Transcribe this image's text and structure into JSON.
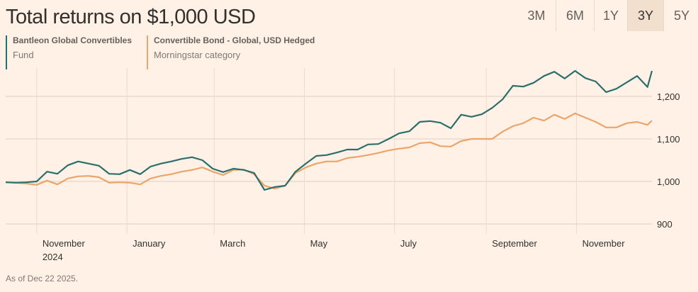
{
  "title": "Total returns on $1,000 USD",
  "ranges": [
    {
      "label": "3M",
      "selected": false
    },
    {
      "label": "6M",
      "selected": false
    },
    {
      "label": "1Y",
      "selected": false
    },
    {
      "label": "3Y",
      "selected": true
    },
    {
      "label": "5Y",
      "selected": false
    }
  ],
  "legend": [
    {
      "name": "Bantleon Global Convertibles",
      "sub": "Fund",
      "color": "#2b6e6b"
    },
    {
      "name": "Convertible Bond - Global, USD Hedged",
      "sub": "Morningstar category",
      "color": "#eba56a"
    }
  ],
  "footnote": "As of Dec 22 2025.",
  "chart_data": {
    "type": "line",
    "x_range": [
      "2024-10-11",
      "2025-12-22"
    ],
    "ylim": [
      880,
      1270
    ],
    "yticks": [
      {
        "value": 900,
        "label": "900"
      },
      {
        "value": 1000,
        "label": "1,000"
      },
      {
        "value": 1100,
        "label": "1,100"
      },
      {
        "value": 1200,
        "label": "1,200"
      }
    ],
    "xticks": [
      {
        "date": "2024-11-01",
        "label": "November",
        "sub": "2024"
      },
      {
        "date": "2025-01-01",
        "label": "January"
      },
      {
        "date": "2025-03-01",
        "label": "March"
      },
      {
        "date": "2025-05-01",
        "label": "May"
      },
      {
        "date": "2025-07-01",
        "label": "July"
      },
      {
        "date": "2025-09-01",
        "label": "September"
      },
      {
        "date": "2025-11-01",
        "label": "November"
      }
    ],
    "grid": true,
    "x": [
      "2024-10-11",
      "2024-10-18",
      "2024-10-25",
      "2024-11-01",
      "2024-11-08",
      "2024-11-15",
      "2024-11-22",
      "2024-11-29",
      "2024-12-06",
      "2024-12-13",
      "2024-12-20",
      "2024-12-27",
      "2025-01-03",
      "2025-01-10",
      "2025-01-17",
      "2025-01-24",
      "2025-01-31",
      "2025-02-07",
      "2025-02-14",
      "2025-02-21",
      "2025-02-28",
      "2025-03-07",
      "2025-03-14",
      "2025-03-21",
      "2025-03-28",
      "2025-04-04",
      "2025-04-11",
      "2025-04-18",
      "2025-04-25",
      "2025-05-02",
      "2025-05-09",
      "2025-05-16",
      "2025-05-23",
      "2025-05-30",
      "2025-06-06",
      "2025-06-13",
      "2025-06-20",
      "2025-06-27",
      "2025-07-04",
      "2025-07-11",
      "2025-07-18",
      "2025-07-25",
      "2025-08-01",
      "2025-08-08",
      "2025-08-15",
      "2025-08-22",
      "2025-08-29",
      "2025-09-05",
      "2025-09-12",
      "2025-09-19",
      "2025-09-26",
      "2025-10-03",
      "2025-10-10",
      "2025-10-17",
      "2025-10-24",
      "2025-10-31",
      "2025-11-07",
      "2025-11-14",
      "2025-11-21",
      "2025-11-28",
      "2025-12-05",
      "2025-12-12",
      "2025-12-19",
      "2025-12-22"
    ],
    "series": [
      {
        "name": "Bantleon Global Convertibles",
        "color": "#2b6e6b",
        "values": [
          998,
          997,
          998,
          1000,
          1023,
          1018,
          1038,
          1047,
          1042,
          1037,
          1018,
          1017,
          1027,
          1017,
          1035,
          1042,
          1047,
          1053,
          1057,
          1050,
          1030,
          1022,
          1030,
          1027,
          1020,
          980,
          987,
          990,
          1023,
          1042,
          1060,
          1062,
          1068,
          1075,
          1075,
          1087,
          1088,
          1100,
          1113,
          1118,
          1140,
          1142,
          1138,
          1125,
          1157,
          1152,
          1158,
          1173,
          1193,
          1225,
          1223,
          1232,
          1248,
          1258,
          1242,
          1260,
          1243,
          1235,
          1210,
          1218,
          1233,
          1248,
          1222,
          1260
        ]
      },
      {
        "name": "Convertible Bond - Global, USD Hedged",
        "color": "#eba56a",
        "values": [
          998,
          997,
          995,
          992,
          1002,
          993,
          1007,
          1012,
          1013,
          1010,
          997,
          998,
          997,
          993,
          1007,
          1013,
          1017,
          1023,
          1027,
          1033,
          1023,
          1015,
          1027,
          1028,
          1017,
          990,
          983,
          990,
          1020,
          1033,
          1042,
          1047,
          1047,
          1055,
          1058,
          1062,
          1067,
          1073,
          1077,
          1080,
          1090,
          1092,
          1083,
          1082,
          1095,
          1100,
          1100,
          1100,
          1117,
          1130,
          1137,
          1150,
          1143,
          1157,
          1147,
          1160,
          1150,
          1140,
          1127,
          1127,
          1137,
          1140,
          1133,
          1143
        ]
      }
    ]
  }
}
